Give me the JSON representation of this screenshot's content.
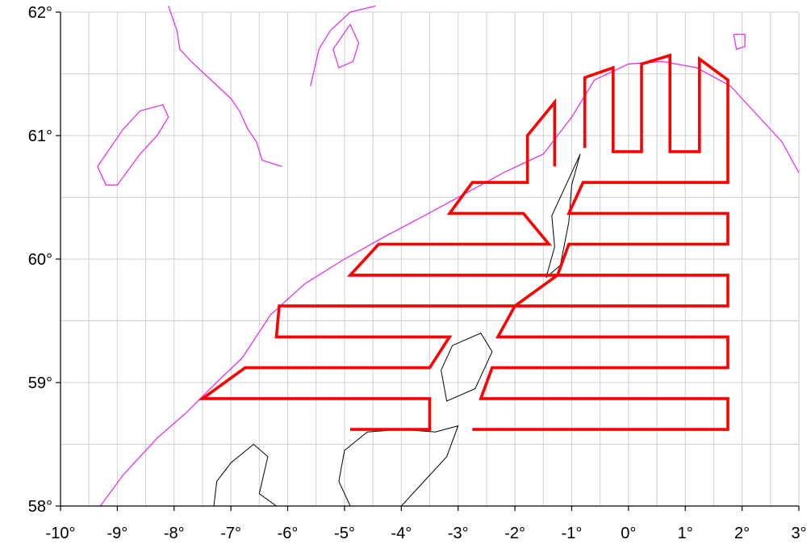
{
  "map": {
    "x_range": [
      -10,
      3
    ],
    "y_range": [
      58,
      62
    ],
    "x_ticks": [
      {
        "value": -10,
        "label": "-10°"
      },
      {
        "value": -9,
        "label": "-9°"
      },
      {
        "value": -8,
        "label": "-8°"
      },
      {
        "value": -7,
        "label": "-7°"
      },
      {
        "value": -6,
        "label": "-6°"
      },
      {
        "value": -5,
        "label": "-5°"
      },
      {
        "value": -4,
        "label": "-4°"
      },
      {
        "value": -3,
        "label": "-3°"
      },
      {
        "value": -2,
        "label": "-2°"
      },
      {
        "value": -1,
        "label": "-1°"
      },
      {
        "value": 0,
        "label": "0°"
      },
      {
        "value": 1,
        "label": "1°"
      },
      {
        "value": 2,
        "label": "2°"
      },
      {
        "value": 3,
        "label": "3°"
      }
    ],
    "y_ticks": [
      {
        "value": 58,
        "label": "58°"
      },
      {
        "value": 59,
        "label": "59°"
      },
      {
        "value": 60,
        "label": "60°"
      },
      {
        "value": 61,
        "label": "61°"
      },
      {
        "value": 62,
        "label": "62°"
      }
    ],
    "grid_minor_x_step": 0.5,
    "grid_minor_y_step": 0.5,
    "colors": {
      "track": "#ff0000",
      "contour": "#e633e6",
      "coast": "#000000",
      "grid": "#cfcfcf"
    },
    "survey_track": [
      [
        -4.9,
        58.62
      ],
      [
        -3.5,
        58.62
      ],
      [
        -3.5,
        58.87
      ],
      [
        -7.5,
        58.87
      ],
      [
        -6.75,
        59.12
      ],
      [
        -3.5,
        59.12
      ],
      [
        -3.15,
        59.37
      ],
      [
        -6.2,
        59.37
      ],
      [
        -6.15,
        59.62
      ],
      [
        -2.0,
        59.62
      ],
      [
        -1.25,
        59.87
      ],
      [
        -4.9,
        59.87
      ],
      [
        -4.4,
        60.12
      ],
      [
        -1.4,
        60.12
      ],
      [
        -1.85,
        60.37
      ],
      [
        -3.15,
        60.37
      ],
      [
        -2.75,
        60.62
      ],
      [
        -1.78,
        60.62
      ],
      [
        -1.78,
        61.0
      ],
      [
        -1.3,
        61.27
      ],
      [
        -1.3,
        60.75
      ]
    ],
    "survey_track_east": [
      [
        -2.75,
        58.62
      ],
      [
        1.75,
        58.62
      ],
      [
        1.75,
        58.87
      ],
      [
        -2.6,
        58.87
      ],
      [
        -2.4,
        59.12
      ],
      [
        1.75,
        59.12
      ],
      [
        1.75,
        59.37
      ],
      [
        -2.3,
        59.37
      ],
      [
        -2.0,
        59.62
      ],
      [
        1.75,
        59.62
      ],
      [
        1.75,
        59.87
      ],
      [
        -1.25,
        59.87
      ],
      [
        -1.05,
        60.12
      ],
      [
        1.75,
        60.12
      ],
      [
        1.75,
        60.37
      ],
      [
        -1.05,
        60.37
      ],
      [
        -0.8,
        60.62
      ],
      [
        1.75,
        60.62
      ],
      [
        1.75,
        61.45
      ],
      [
        1.25,
        61.62
      ],
      [
        1.25,
        60.87
      ],
      [
        0.73,
        60.87
      ],
      [
        0.73,
        61.65
      ],
      [
        0.23,
        61.58
      ],
      [
        0.23,
        60.87
      ],
      [
        -0.27,
        60.87
      ],
      [
        -0.27,
        61.55
      ],
      [
        -0.77,
        61.47
      ],
      [
        -0.77,
        60.9
      ]
    ],
    "contour_lines": [
      [
        [
          -9.3,
          58.0
        ],
        [
          -8.9,
          58.25
        ],
        [
          -8.3,
          58.55
        ],
        [
          -7.8,
          58.75
        ],
        [
          -7.3,
          58.98
        ],
        [
          -6.8,
          59.2
        ],
        [
          -6.3,
          59.55
        ],
        [
          -5.7,
          59.8
        ],
        [
          -5.0,
          60.0
        ],
        [
          -4.3,
          60.18
        ],
        [
          -3.6,
          60.35
        ],
        [
          -2.8,
          60.55
        ],
        [
          -2.2,
          60.7
        ],
        [
          -1.5,
          60.85
        ],
        [
          -1.0,
          61.15
        ],
        [
          -0.6,
          61.45
        ],
        [
          0.0,
          61.58
        ],
        [
          0.6,
          61.6
        ],
        [
          1.2,
          61.55
        ],
        [
          1.8,
          61.4
        ],
        [
          2.3,
          61.15
        ],
        [
          2.7,
          60.95
        ],
        [
          3.0,
          60.7
        ]
      ],
      [
        [
          -9.35,
          60.75
        ],
        [
          -9.2,
          60.6
        ],
        [
          -9.0,
          60.6
        ],
        [
          -8.6,
          60.85
        ],
        [
          -8.3,
          61.0
        ],
        [
          -8.1,
          61.15
        ],
        [
          -8.2,
          61.25
        ],
        [
          -8.6,
          61.2
        ],
        [
          -8.9,
          61.05
        ],
        [
          -9.35,
          60.75
        ]
      ],
      [
        [
          -8.1,
          62.05
        ],
        [
          -7.95,
          61.85
        ],
        [
          -7.9,
          61.7
        ],
        [
          -7.7,
          61.6
        ],
        [
          -7.35,
          61.45
        ],
        [
          -7.0,
          61.3
        ],
        [
          -6.85,
          61.2
        ],
        [
          -6.7,
          61.05
        ],
        [
          -6.55,
          60.95
        ],
        [
          -6.45,
          60.8
        ],
        [
          -6.1,
          60.75
        ]
      ],
      [
        [
          -5.6,
          61.4
        ],
        [
          -5.45,
          61.7
        ],
        [
          -5.25,
          61.85
        ],
        [
          -4.9,
          62.0
        ],
        [
          -4.45,
          62.05
        ]
      ],
      [
        [
          -5.2,
          61.7
        ],
        [
          -4.9,
          61.9
        ],
        [
          -4.75,
          61.75
        ],
        [
          -4.85,
          61.6
        ],
        [
          -5.1,
          61.55
        ],
        [
          -5.2,
          61.7
        ]
      ],
      [
        [
          1.85,
          61.82
        ],
        [
          2.05,
          61.82
        ],
        [
          2.05,
          61.72
        ],
        [
          1.9,
          61.7
        ],
        [
          1.85,
          61.82
        ]
      ]
    ],
    "coastlines": [
      [
        [
          -7.3,
          58.0
        ],
        [
          -7.25,
          58.2
        ],
        [
          -7.0,
          58.35
        ],
        [
          -6.6,
          58.5
        ],
        [
          -6.35,
          58.4
        ],
        [
          -6.5,
          58.1
        ],
        [
          -6.2,
          58.0
        ]
      ],
      [
        [
          -4.9,
          58.0
        ],
        [
          -5.1,
          58.2
        ],
        [
          -5.0,
          58.45
        ],
        [
          -4.6,
          58.6
        ],
        [
          -4.0,
          58.62
        ],
        [
          -3.4,
          58.6
        ],
        [
          -3.0,
          58.65
        ],
        [
          -3.2,
          58.4
        ],
        [
          -3.6,
          58.2
        ],
        [
          -4.0,
          58.0
        ]
      ],
      [
        [
          -3.3,
          59.1
        ],
        [
          -3.1,
          59.3
        ],
        [
          -2.6,
          59.4
        ],
        [
          -2.4,
          59.25
        ],
        [
          -2.7,
          58.95
        ],
        [
          -3.2,
          58.85
        ],
        [
          -3.3,
          59.1
        ]
      ],
      [
        [
          -1.45,
          59.85
        ],
        [
          -1.3,
          60.1
        ],
        [
          -1.35,
          60.35
        ],
        [
          -1.1,
          60.6
        ],
        [
          -0.85,
          60.85
        ],
        [
          -1.0,
          60.6
        ],
        [
          -1.05,
          60.3
        ],
        [
          -1.2,
          59.95
        ],
        [
          -1.45,
          59.85
        ]
      ]
    ]
  }
}
